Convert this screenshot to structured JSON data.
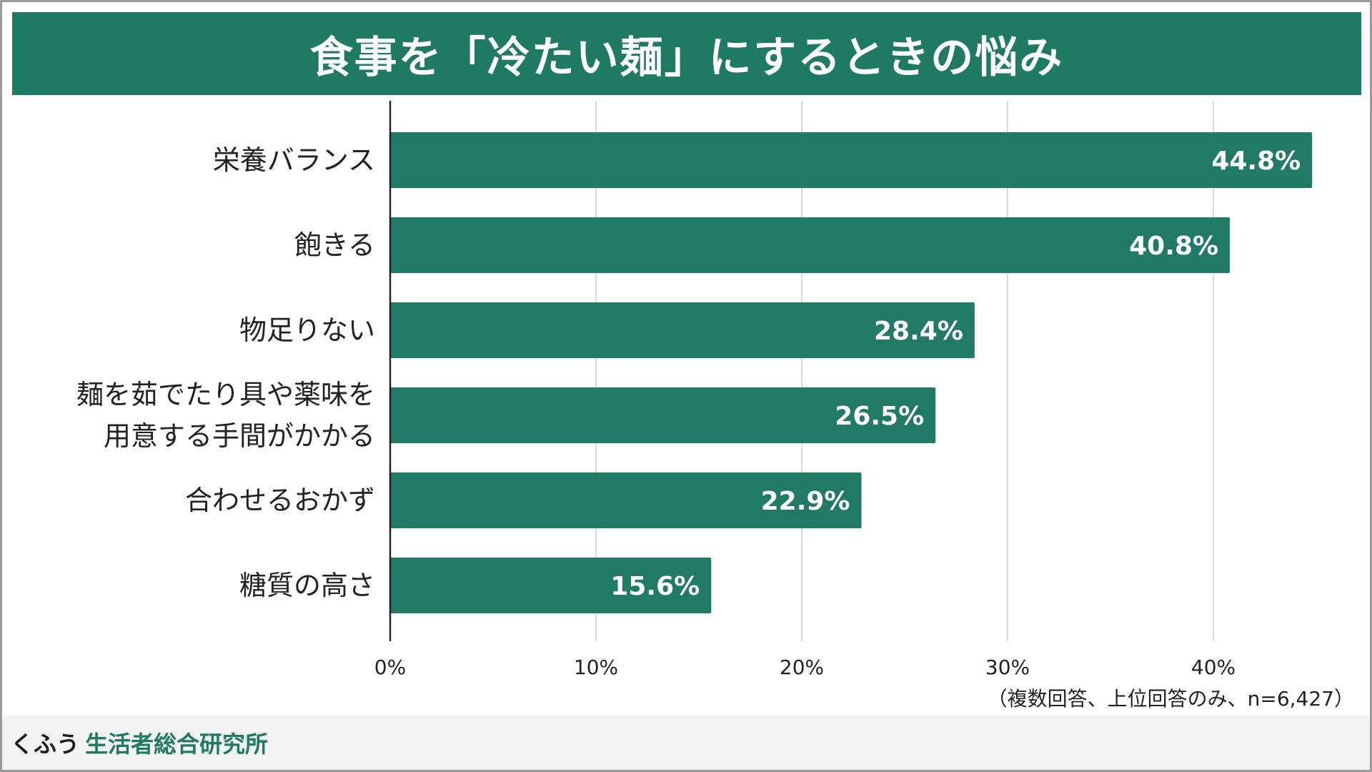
{
  "colors": {
    "accent": "#1f7a63",
    "bar": "#207a65",
    "grid": "#d8d8d8",
    "axis": "#222222",
    "bar_label": "#ffffff",
    "text": "#222222"
  },
  "header": {
    "title": "食事を「冷たい麺」にするときの悩み"
  },
  "footer": {
    "brand": "くふう",
    "org": "生活者総合研究所"
  },
  "chart_data": {
    "type": "bar",
    "orientation": "horizontal",
    "title": "食事を「冷たい麺」にするときの悩み",
    "categories": [
      [
        "栄養バランス"
      ],
      [
        "飽きる"
      ],
      [
        "物足りない"
      ],
      [
        "麺を茹でたり具や薬味を",
        "用意する手間がかかる"
      ],
      [
        "合わせるおかず"
      ],
      [
        "糖質の高さ"
      ]
    ],
    "values": [
      44.8,
      40.8,
      28.4,
      26.5,
      22.9,
      15.6
    ],
    "value_labels": [
      "44.8%",
      "40.8%",
      "28.4%",
      "26.5%",
      "22.9%",
      "15.6%"
    ],
    "xlim": [
      0,
      45
    ],
    "ticks": [
      0,
      10,
      20,
      30,
      40
    ],
    "tick_labels": [
      "0%",
      "10%",
      "20%",
      "30%",
      "40%"
    ],
    "grid": "vertical",
    "note": "（複数回答、上位回答のみ、n=6,427）"
  }
}
